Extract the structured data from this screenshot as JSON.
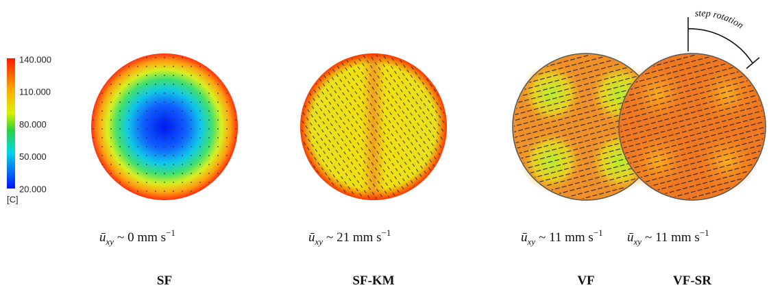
{
  "colorbar": {
    "ticks": [
      "140.000",
      "110.000",
      "80.000",
      "50.000",
      "20.000"
    ],
    "unit": "[C]"
  },
  "annotation": "step rotation",
  "panels": [
    {
      "velocity": {
        "symbol": "ū",
        "subscript": "xy",
        "text": "~ 0 mm s",
        "superscript": "−1"
      },
      "label": "SF"
    },
    {
      "velocity": {
        "symbol": "ū",
        "subscript": "xy",
        "text": "~ 21 mm s",
        "superscript": "−1"
      },
      "label": "SF-KM"
    },
    {
      "velocity": {
        "symbol": "ū",
        "subscript": "xy",
        "text": "~ 11 mm s",
        "superscript": "−1"
      },
      "label": "VF"
    },
    {
      "velocity": {
        "symbol": "ū",
        "subscript": "xy",
        "text": "~ 11 mm s",
        "superscript": "−1"
      },
      "label": "VF-SR"
    }
  ]
}
